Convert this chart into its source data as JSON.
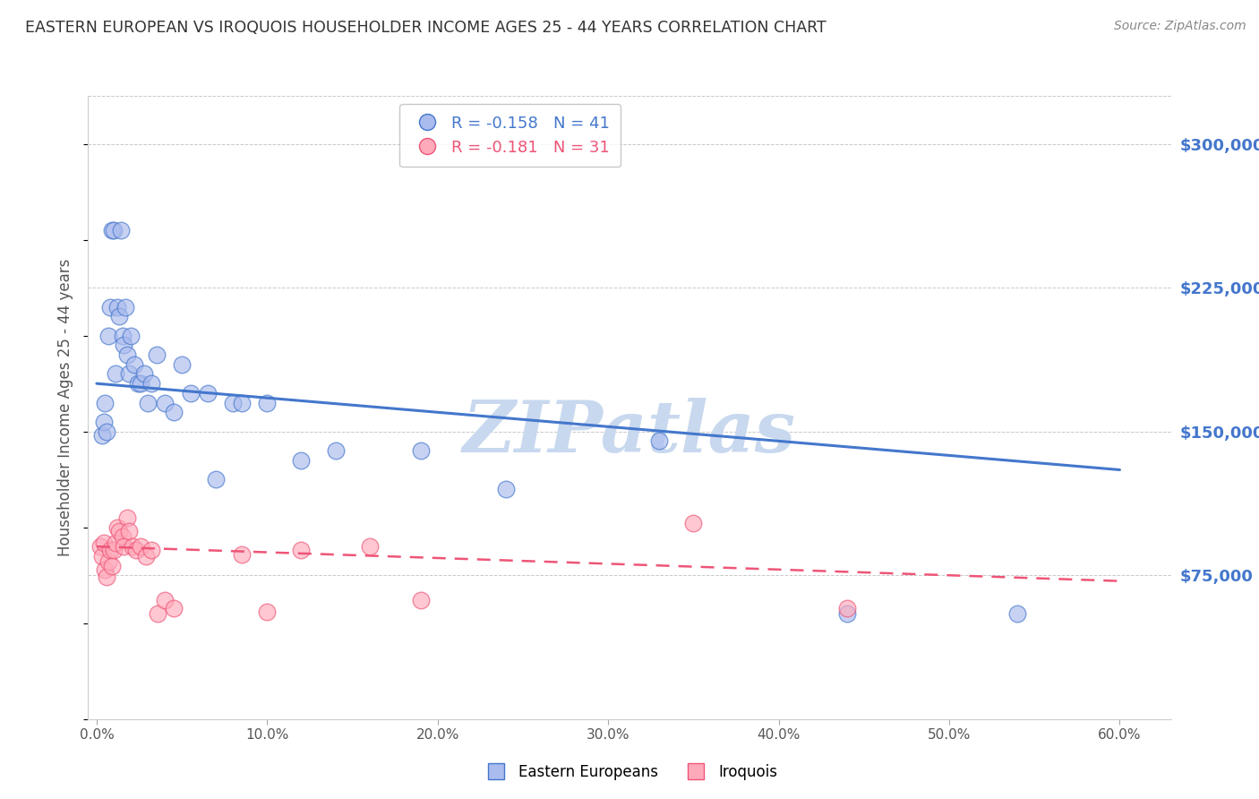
{
  "title": "EASTERN EUROPEAN VS IROQUOIS HOUSEHOLDER INCOME AGES 25 - 44 YEARS CORRELATION CHART",
  "source": "Source: ZipAtlas.com",
  "ylabel": "Householder Income Ages 25 - 44 years",
  "xlabel_ticks": [
    "0.0%",
    "10.0%",
    "20.0%",
    "30.0%",
    "40.0%",
    "50.0%",
    "60.0%"
  ],
  "xlabel_vals": [
    0.0,
    0.1,
    0.2,
    0.3,
    0.4,
    0.5,
    0.6
  ],
  "ytick_labels": [
    "$75,000",
    "$150,000",
    "$225,000",
    "$300,000"
  ],
  "ytick_vals": [
    75000,
    150000,
    225000,
    300000
  ],
  "ymin": 0,
  "ymax": 325000,
  "xmin": -0.005,
  "xmax": 0.63,
  "blue_scatter_x": [
    0.003,
    0.004,
    0.005,
    0.006,
    0.007,
    0.008,
    0.009,
    0.01,
    0.011,
    0.012,
    0.013,
    0.014,
    0.015,
    0.016,
    0.017,
    0.018,
    0.019,
    0.02,
    0.022,
    0.024,
    0.026,
    0.028,
    0.03,
    0.032,
    0.035,
    0.04,
    0.045,
    0.05,
    0.055,
    0.065,
    0.07,
    0.08,
    0.085,
    0.1,
    0.12,
    0.14,
    0.19,
    0.24,
    0.33,
    0.44,
    0.54
  ],
  "blue_scatter_y": [
    148000,
    155000,
    165000,
    150000,
    200000,
    215000,
    255000,
    255000,
    180000,
    215000,
    210000,
    255000,
    200000,
    195000,
    215000,
    190000,
    180000,
    200000,
    185000,
    175000,
    175000,
    180000,
    165000,
    175000,
    190000,
    165000,
    160000,
    185000,
    170000,
    170000,
    125000,
    165000,
    165000,
    165000,
    135000,
    140000,
    140000,
    120000,
    145000,
    55000,
    55000
  ],
  "pink_scatter_x": [
    0.002,
    0.003,
    0.004,
    0.005,
    0.006,
    0.007,
    0.008,
    0.009,
    0.01,
    0.011,
    0.012,
    0.013,
    0.015,
    0.016,
    0.018,
    0.019,
    0.021,
    0.023,
    0.026,
    0.029,
    0.032,
    0.036,
    0.04,
    0.045,
    0.085,
    0.1,
    0.12,
    0.16,
    0.19,
    0.35,
    0.44
  ],
  "pink_scatter_y": [
    90000,
    85000,
    92000,
    78000,
    74000,
    82000,
    88000,
    80000,
    88000,
    92000,
    100000,
    98000,
    95000,
    90000,
    105000,
    98000,
    90000,
    88000,
    90000,
    85000,
    88000,
    55000,
    62000,
    58000,
    86000,
    56000,
    88000,
    90000,
    62000,
    102000,
    58000
  ],
  "blue_line_x": [
    0.0,
    0.6
  ],
  "blue_line_y": [
    175000,
    130000
  ],
  "pink_line_x": [
    0.0,
    0.6
  ],
  "pink_line_y": [
    90000,
    72000
  ],
  "blue_color": "#4477cc",
  "pink_color": "#ee5577",
  "blue_scatter_fill": "#aabbee",
  "pink_scatter_fill": "#ffaabb",
  "watermark": "ZIPatlas",
  "watermark_color": "#c8d8ee",
  "background_color": "#ffffff",
  "grid_color": "#bbbbbb",
  "title_color": "#333333",
  "source_color": "#888888",
  "ylabel_color": "#555555",
  "right_tick_color": "#4477cc",
  "bottom_tick_color": "#555555"
}
